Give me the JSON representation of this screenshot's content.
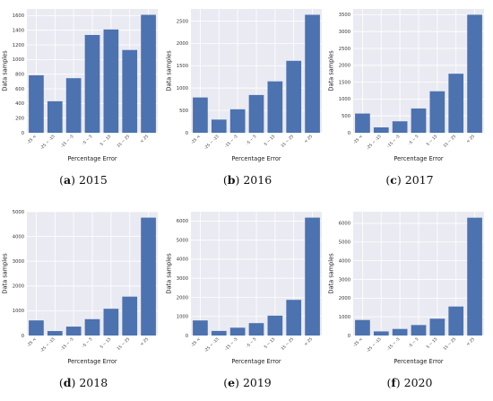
{
  "style": {
    "plot_bg": "#eaeaf2",
    "grid": "#ffffff",
    "bar": "#4c72b0"
  },
  "chart_data": [
    {
      "type": "bar",
      "caption": {
        "letter": "a",
        "year": "2015"
      },
      "categories": [
        "-25 <",
        "-25 ~ -15",
        "-15 ~ -5",
        "-5 ~ 5",
        "5 ~ 15",
        "15 ~ 25",
        "< 25"
      ],
      "values": [
        785,
        430,
        745,
        1335,
        1410,
        1130,
        1610
      ],
      "yticks": [
        0,
        200,
        400,
        600,
        800,
        1000,
        1200,
        1400,
        1600
      ],
      "ylim": [
        0,
        1690
      ],
      "xlabel": "Percentage Error",
      "ylabel": "Data samples",
      "grid": true
    },
    {
      "type": "bar",
      "caption": {
        "letter": "b",
        "year": "2016"
      },
      "categories": [
        "-25 <",
        "-25 ~ -15",
        "-15 ~ -5",
        "-5 ~ 5",
        "5 ~ 15",
        "15 ~ 25",
        "< 25"
      ],
      "values": [
        790,
        295,
        525,
        845,
        1150,
        1610,
        2640
      ],
      "yticks": [
        0,
        500,
        1000,
        1500,
        2000,
        2500
      ],
      "ylim": [
        0,
        2770
      ],
      "xlabel": "Percentage Error",
      "ylabel": "Data samples",
      "grid": true
    },
    {
      "type": "bar",
      "caption": {
        "letter": "c",
        "year": "2017"
      },
      "categories": [
        "-25 <",
        "-25 ~ -15",
        "-15 ~ -5",
        "-5 ~ 5",
        "5 ~ 15",
        "15 ~ 25",
        "< 25"
      ],
      "values": [
        570,
        160,
        340,
        720,
        1230,
        1750,
        3500
      ],
      "yticks": [
        0,
        500,
        1000,
        1500,
        2000,
        2500,
        3000,
        3500
      ],
      "ylim": [
        0,
        3670
      ],
      "xlabel": "Percentage Error",
      "ylabel": "Data samples",
      "grid": true
    },
    {
      "type": "bar",
      "caption": {
        "letter": "d",
        "year": "2018"
      },
      "categories": [
        "-25 <",
        "-25 ~ -15",
        "-15 ~ -5",
        "-5 ~ 5",
        "5 ~ 15",
        "15 ~ 25",
        "< 25"
      ],
      "values": [
        610,
        180,
        360,
        660,
        1080,
        1570,
        4760
      ],
      "yticks": [
        0,
        1000,
        2000,
        3000,
        4000,
        5000
      ],
      "ylim": [
        0,
        5000
      ],
      "xlabel": "Percentage Error",
      "ylabel": "Data samples",
      "grid": true
    },
    {
      "type": "bar",
      "caption": {
        "letter": "e",
        "year": "2019"
      },
      "categories": [
        "-25 <",
        "-25 ~ -15",
        "-15 ~ -5",
        "-5 ~ 5",
        "5 ~ 15",
        "15 ~ 25",
        "< 25"
      ],
      "values": [
        790,
        240,
        410,
        650,
        1040,
        1870,
        6180
      ],
      "yticks": [
        0,
        1000,
        2000,
        3000,
        4000,
        5000,
        6000
      ],
      "ylim": [
        0,
        6490
      ],
      "xlabel": "Percentage Error",
      "ylabel": "Data samples",
      "grid": true
    },
    {
      "type": "bar",
      "caption": {
        "letter": "f",
        "year": "2020"
      },
      "categories": [
        "-25 <",
        "-25 ~ -15",
        "-15 ~ -5",
        "-5 ~ 5",
        "5 ~ 15",
        "15 ~ 25",
        "< 25"
      ],
      "values": [
        830,
        220,
        350,
        560,
        900,
        1550,
        6300
      ],
      "yticks": [
        0,
        1000,
        2000,
        3000,
        4000,
        5000,
        6000
      ],
      "ylim": [
        0,
        6620
      ],
      "xlabel": "Percentage Error",
      "ylabel": "Data samples",
      "grid": true
    }
  ]
}
